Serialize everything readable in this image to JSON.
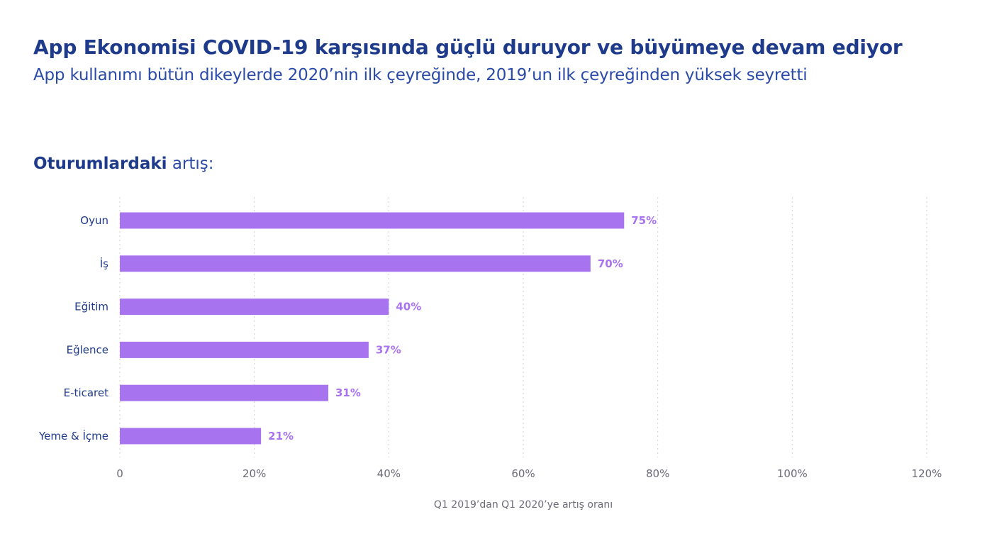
{
  "header": {
    "title": "App Ekonomisi COVID-19 karşısında güçlü duruyor ve büyümeye devam ediyor",
    "subtitle": "App kullanımı bütün dikeylerde 2020’nin ilk çeyreğinde, 2019’un ilk çeyreğinden yüksek seyretti"
  },
  "section": {
    "label_strong": "Oturumlardaki",
    "label_rest": " artış:"
  },
  "colors": {
    "bar": "#a873ef",
    "value_label": "#a873ef",
    "title": "#1e3a8a",
    "grid": "#cfcfd6"
  },
  "chart_data": {
    "type": "bar",
    "orientation": "horizontal",
    "categories": [
      "Oyun",
      "İş",
      "Eğitim",
      "Eğlence",
      "E-ticaret",
      "Yeme & İçme"
    ],
    "values": [
      75,
      70,
      40,
      37,
      31,
      21
    ],
    "value_labels": [
      "75%",
      "70%",
      "40%",
      "37%",
      "31%",
      "21%"
    ],
    "xlabel": "Q1 2019’dan Q1 2020’ye artış oranı",
    "xlim": [
      0,
      120
    ],
    "x_ticks": [
      0,
      20,
      40,
      60,
      80,
      100,
      120
    ],
    "x_tick_labels": [
      "0",
      "20%",
      "40%",
      "60%",
      "80%",
      "100%",
      "120%"
    ],
    "grid": true,
    "legend": "none"
  }
}
